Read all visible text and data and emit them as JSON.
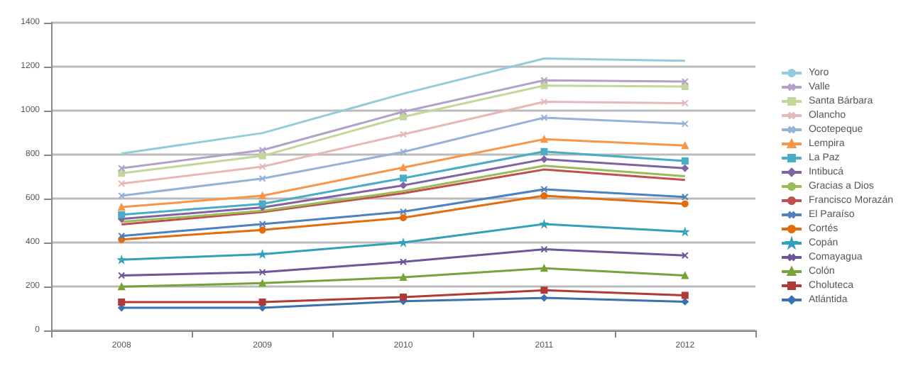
{
  "chart_data": {
    "type": "line",
    "categories": [
      "2008",
      "2009",
      "2010",
      "2011",
      "2012"
    ],
    "ylim": [
      0,
      1400
    ],
    "yticks": [
      0,
      200,
      400,
      600,
      800,
      1000,
      1200,
      1400
    ],
    "grid": "y",
    "legend": "right",
    "series": [
      {
        "name": "Yoro",
        "color": "#93cddd",
        "marker": "none",
        "values": [
          805,
          898,
          1077,
          1237,
          1227
        ]
      },
      {
        "name": "Valle",
        "color": "#b3a2c7",
        "marker": "cross",
        "values": [
          738,
          820,
          995,
          1138,
          1132
        ]
      },
      {
        "name": "Santa Bárbara",
        "color": "#c3d69b",
        "marker": "square",
        "values": [
          715,
          794,
          972,
          1114,
          1110
        ]
      },
      {
        "name": "Olancho",
        "color": "#e6b9b8",
        "marker": "cross",
        "values": [
          668,
          745,
          892,
          1040,
          1034
        ]
      },
      {
        "name": "Ocotepeque",
        "color": "#95b3d7",
        "marker": "cross",
        "values": [
          613,
          691,
          812,
          968,
          940
        ]
      },
      {
        "name": "Lempira",
        "color": "#f79646",
        "marker": "triangle",
        "values": [
          561,
          613,
          741,
          870,
          841
        ]
      },
      {
        "name": "La Paz",
        "color": "#4bacc6",
        "marker": "square",
        "values": [
          527,
          576,
          693,
          814,
          771
        ]
      },
      {
        "name": "Intibucá",
        "color": "#8064a2",
        "marker": "diamond",
        "values": [
          507,
          560,
          660,
          779,
          738
        ]
      },
      {
        "name": "Gracias a Dios",
        "color": "#9bbb59",
        "marker": "none",
        "values": [
          494,
          544,
          634,
          749,
          702
        ]
      },
      {
        "name": "Francisco Morazán",
        "color": "#c0504d",
        "marker": "none",
        "values": [
          482,
          539,
          624,
          732,
          685
        ]
      },
      {
        "name": "El Paraíso",
        "color": "#4f81bd",
        "marker": "cross",
        "values": [
          430,
          484,
          540,
          642,
          607
        ]
      },
      {
        "name": "Cortés",
        "color": "#e46c0a",
        "marker": "circle",
        "values": [
          414,
          457,
          513,
          613,
          576
        ]
      },
      {
        "name": "Copán",
        "color": "#31a0b8",
        "marker": "star",
        "values": [
          322,
          347,
          400,
          484,
          449
        ]
      },
      {
        "name": "Comayagua",
        "color": "#6f559a",
        "marker": "cross",
        "values": [
          250,
          265,
          312,
          369,
          341
        ]
      },
      {
        "name": "Colón",
        "color": "#77a33a",
        "marker": "triangle",
        "values": [
          199,
          215,
          242,
          283,
          250
        ]
      },
      {
        "name": "Choluteca",
        "color": "#b03a37",
        "marker": "square",
        "values": [
          129,
          129,
          152,
          183,
          160
        ]
      },
      {
        "name": "Atlántida",
        "color": "#3a72b0",
        "marker": "diamond",
        "values": [
          103,
          103,
          133,
          148,
          131
        ]
      }
    ]
  }
}
